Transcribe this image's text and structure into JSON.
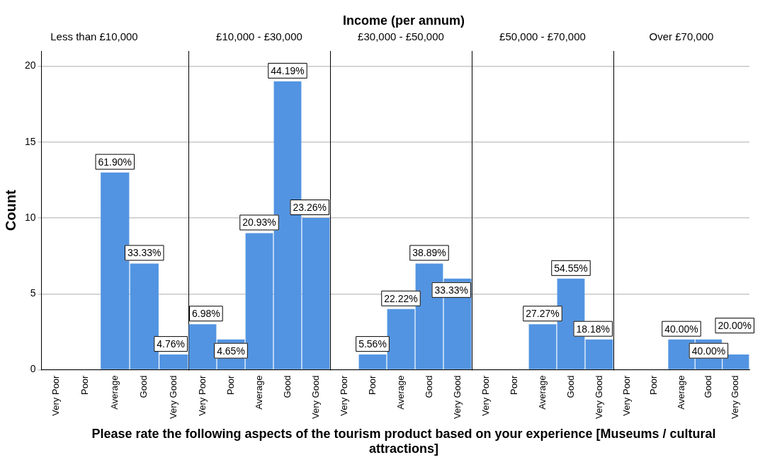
{
  "chart_data": [
    {
      "type": "bar",
      "title": "Less than £10,000",
      "ylabel": "Count",
      "categories": [
        "Very Poor",
        "Poor",
        "Average",
        "Good",
        "Very Good"
      ],
      "values": [
        0,
        0,
        13,
        7,
        1
      ],
      "annotations": [
        {
          "text": "61.90%",
          "x": "Average",
          "y": 13
        },
        {
          "text": "33.33%",
          "x": "Good",
          "y": 7
        },
        {
          "text": "4.76%",
          "x": "Very Good",
          "y": 1
        }
      ],
      "color": "#5294e2",
      "ylim": [
        0,
        21
      ],
      "yticks": [
        0,
        5,
        10,
        15,
        20
      ],
      "grid": "y",
      "legend": false
    },
    {
      "type": "bar",
      "title": "£10,000 - £30,000",
      "categories": [
        "Very Poor",
        "Poor",
        "Average",
        "Good",
        "Very Good"
      ],
      "values": [
        3,
        2,
        9,
        19,
        10
      ],
      "annotations": [
        {
          "text": "6.98%",
          "x": "Very Poor",
          "y": 3
        },
        {
          "text": "4.65%",
          "x": "Poor",
          "y": 2
        },
        {
          "text": "20.93%",
          "x": "Average",
          "y": 9
        },
        {
          "text": "44.19%",
          "x": "Good",
          "y": 19
        },
        {
          "text": "23.26%",
          "x": "Very Good",
          "y": 10
        }
      ],
      "color": "#5294e2",
      "ylim": [
        0,
        21
      ],
      "yticks": [
        0,
        5,
        10,
        15,
        20
      ],
      "grid": "y",
      "legend": false,
      "tick_labels": "x"
    },
    {
      "type": "bar",
      "title": "£30,000 - £50,000",
      "xlabel": "Please rate the following aspects of the tourism product based on your experience [Museums / cultural attractions]",
      "annotations": [
        "Income (per annum)",
        {
          "text": "5.56%",
          "x": "Poor",
          "y": 1
        },
        {
          "text": "22.22%",
          "x": "Average",
          "y": 4
        },
        {
          "text": "38.89%",
          "x": "Good",
          "y": 7
        },
        {
          "text": "33.33%",
          "x": "Very Good",
          "y": 6
        }
      ],
      "categories": [
        "Very Poor",
        "Poor",
        "Average",
        "Good",
        "Very Good"
      ],
      "values": [
        0,
        1,
        4,
        7,
        6
      ],
      "color": "#5294e2",
      "ylim": [
        0,
        21
      ],
      "yticks": [
        0,
        5,
        10,
        15,
        20
      ],
      "grid": "y",
      "legend": false,
      "tick_labels": "x"
    },
    {
      "type": "bar",
      "title": "£50,000 - £70,000",
      "categories": [
        "Very Poor",
        "Poor",
        "Average",
        "Good",
        "Very Good"
      ],
      "values": [
        0,
        0,
        3,
        6,
        2
      ],
      "annotations": [
        {
          "text": "27.27%",
          "x": "Average",
          "y": 3
        },
        {
          "text": "54.55%",
          "x": "Good",
          "y": 6
        },
        {
          "text": "18.18%",
          "x": "Very Good",
          "y": 2
        }
      ],
      "color": "#5294e2",
      "ylim": [
        0,
        21
      ],
      "yticks": [
        0,
        5,
        10,
        15,
        20
      ],
      "grid": "y",
      "legend": false,
      "tick_labels": "x"
    },
    {
      "type": "bar",
      "title": "Over £70,000",
      "categories": [
        "Very Poor",
        "Poor",
        "Average",
        "Good",
        "Very Good"
      ],
      "values": [
        0,
        0,
        2,
        2,
        1
      ],
      "annotations": [
        {
          "text": "40.00%",
          "x": "Average",
          "y": 2
        },
        {
          "text": "40.00%",
          "x": "Good",
          "y": 2
        },
        {
          "text": "20.00%",
          "x": "Very Good",
          "y": 1
        }
      ],
      "color": "#5294e2",
      "ylim": [
        0,
        21
      ],
      "yticks": [
        0,
        5,
        10,
        15,
        20
      ],
      "grid": "y",
      "legend": false,
      "tick_labels": "x"
    }
  ]
}
